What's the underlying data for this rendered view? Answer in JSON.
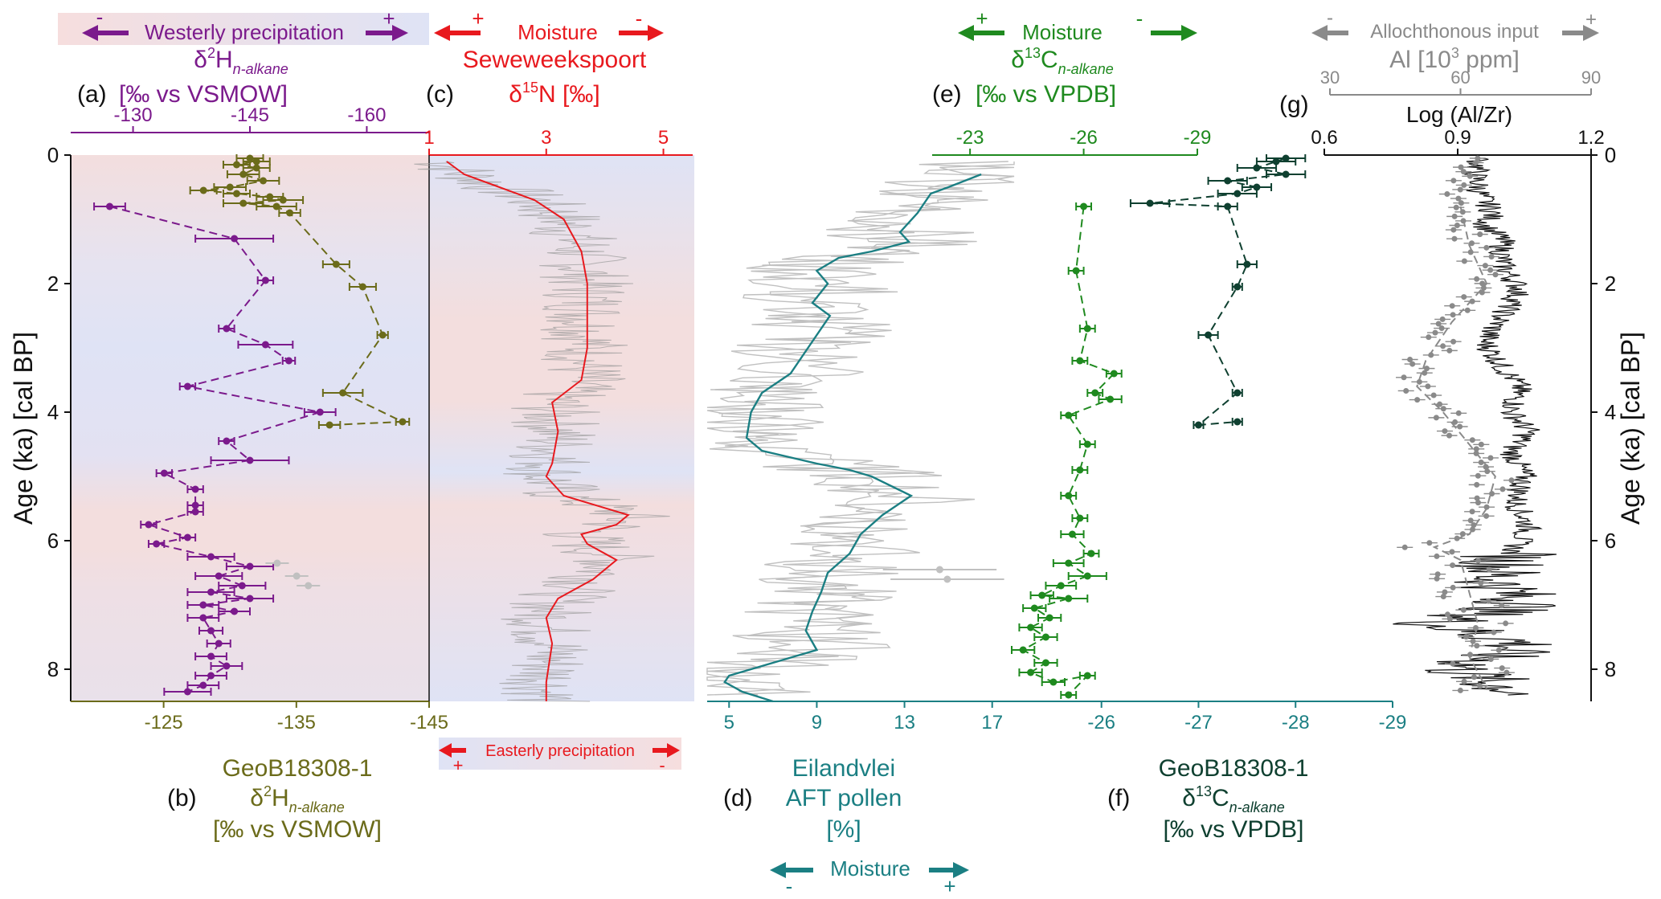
{
  "colors": {
    "purple": "#7b1a8c",
    "olive": "#6b6b1a",
    "red": "#e8191e",
    "teal": "#1b7f83",
    "green": "#1f8a1f",
    "darkgreen": "#0f4030",
    "grey": "#8a8a8a",
    "darkgrey": "#6a6a6a",
    "black": "#111111",
    "lightgrey": "#c0c0c0",
    "pink": "#f6dede",
    "blue": "#dfe3f5"
  },
  "headers": {
    "a_bar": {
      "label": "Westerly precipitation",
      "minus": "-",
      "plus": "+"
    },
    "a_title": {
      "delta": "δ",
      "sup": "2",
      "main": "H",
      "sub": "n-alkane"
    },
    "a_unit": {
      "panel": "(a)",
      "unit": "[‰ vs VSMOW]"
    },
    "c_arrow": {
      "label": "Moisture",
      "plus": "+",
      "minus": "-"
    },
    "c_title": "Seweweekspoort",
    "c_unit": {
      "panel": "(c)",
      "delta": "δ",
      "sup": "15",
      "main": "N [‰]"
    },
    "e_arrow": {
      "label": "Moisture",
      "plus": "+",
      "minus": "-"
    },
    "e_title": {
      "delta": "δ",
      "sup": "13",
      "main": "C",
      "sub": "n-alkane"
    },
    "e_unit": {
      "panel": "(e)",
      "unit": "[‰ vs VPDB]"
    },
    "g_arrow": {
      "label": "Allochthonous input",
      "minus": "-",
      "plus": "+"
    },
    "g_title": {
      "main": "Al [10",
      "sup": "3",
      "end": " ppm]"
    },
    "g_unit": {
      "panel": "(g)",
      "unit": "Log (Al/Zr)"
    },
    "easterly": {
      "label": "Easterly precipitation",
      "plus": "+",
      "minus": "-"
    },
    "b_label": {
      "panel": "(b)",
      "line1": "GeoB18308-1",
      "line2": {
        "delta": "δ",
        "sup": "2",
        "main": "H",
        "sub": "n-alkane"
      },
      "line3": "[‰ vs VSMOW]"
    },
    "d_label": {
      "panel": "(d)",
      "line1": "Eilandvlei",
      "line2": "AFT pollen",
      "line3": "[%]"
    },
    "f_label": {
      "panel": "(f)",
      "line1": "GeoB18308-1",
      "line2": {
        "delta": "δ",
        "sup": "13",
        "main": "C",
        "sub": "n-alkane"
      },
      "line3": "[‰ vs VPDB]"
    },
    "d_arrow": {
      "label": "Moisture",
      "minus": "-",
      "plus": "+"
    },
    "y_label": "Age (ka) [cal BP]"
  },
  "chart_data": [
    {
      "id": "a",
      "type": "line",
      "title": "δ2H n-alkane",
      "xlabel": "δ2H n-alkane [‰ vs VSMOW]",
      "xlim": [
        -122,
        -168
      ],
      "ticks": [
        "-130",
        "-145",
        "-160"
      ],
      "tick_values": [
        -130,
        -145,
        -160
      ],
      "points": [
        [
          -127,
          0.8
        ],
        [
          -143,
          1.3
        ],
        [
          -147,
          1.95
        ],
        [
          -142,
          2.7
        ],
        [
          -147,
          2.95
        ],
        [
          -150,
          3.2
        ],
        [
          -137,
          3.6
        ],
        [
          -154,
          4.0
        ],
        [
          -142,
          4.45
        ],
        [
          -145,
          4.75
        ],
        [
          -134,
          4.95
        ],
        [
          -138,
          5.2
        ],
        [
          -138,
          5.45
        ],
        [
          -138,
          5.55
        ],
        [
          -132,
          5.75
        ],
        [
          -137,
          5.95
        ],
        [
          -133,
          6.05
        ],
        [
          -140,
          6.25
        ],
        [
          -145,
          6.4
        ],
        [
          -141,
          6.55
        ],
        [
          -144,
          6.7
        ],
        [
          -140,
          6.8
        ],
        [
          -145,
          6.9
        ],
        [
          -139,
          7.0
        ],
        [
          -143,
          7.1
        ],
        [
          -139,
          7.2
        ],
        [
          -140,
          7.4
        ],
        [
          -141,
          7.6
        ],
        [
          -140,
          7.8
        ],
        [
          -142,
          7.95
        ],
        [
          -140,
          8.1
        ],
        [
          -139,
          8.25
        ],
        [
          -137,
          8.35
        ]
      ],
      "error": [
        2,
        5,
        1,
        1,
        3.5,
        0.8,
        1,
        2,
        1,
        5,
        1,
        1,
        1,
        1,
        1,
        1,
        1,
        3,
        3,
        3,
        3,
        3,
        3,
        2,
        2,
        2,
        1.5,
        1.5,
        2,
        2,
        2,
        2,
        3
      ],
      "light_points": [
        [
          -148.5,
          6.35
        ],
        [
          -151,
          6.55
        ],
        [
          -152.5,
          6.7
        ]
      ]
    },
    {
      "id": "b",
      "type": "line",
      "title": "δ2H n-alkane",
      "xlabel": "δ2H n-alkane [‰ vs VSMOW]",
      "xlim": [
        -118,
        -145
      ],
      "ticks": [
        "-125",
        "-135",
        "-145"
      ],
      "tick_values": [
        -125,
        -135,
        -145
      ],
      "points": [
        [
          -131.5,
          0.05
        ],
        [
          -132,
          0.1
        ],
        [
          -130.5,
          0.15
        ],
        [
          -132,
          0.2
        ],
        [
          -131,
          0.3
        ],
        [
          -132.5,
          0.4
        ],
        [
          -130,
          0.5
        ],
        [
          -128,
          0.55
        ],
        [
          -130.5,
          0.6
        ],
        [
          -133,
          0.65
        ],
        [
          -134,
          0.7
        ],
        [
          -131,
          0.75
        ],
        [
          -133.5,
          0.8
        ],
        [
          -134.5,
          0.9
        ],
        [
          -138,
          1.7
        ],
        [
          -140,
          2.05
        ],
        [
          -141.5,
          2.8
        ],
        [
          -138.5,
          3.7
        ],
        [
          -143,
          4.15
        ],
        [
          -137.5,
          4.2
        ]
      ],
      "error": [
        1,
        1,
        1,
        1,
        1.2,
        1.2,
        1.2,
        1,
        1,
        1,
        1.5,
        1.5,
        1.5,
        0.8,
        1,
        1,
        0.4,
        1.5,
        0.5,
        0.8
      ]
    },
    {
      "id": "c",
      "type": "line",
      "title": "Seweweekspoort δ15N",
      "xlabel": "δ15N [‰]",
      "xlim": [
        1,
        5.5
      ],
      "ticks": [
        "1",
        "3",
        "5"
      ],
      "tick_values": [
        1,
        3,
        5
      ],
      "series": [
        {
          "name": "δ15N smoothed",
          "points": [
            [
              1.3,
              0.1
            ],
            [
              1.6,
              0.3
            ],
            [
              2.2,
              0.5
            ],
            [
              2.8,
              0.7
            ],
            [
              3.3,
              1.0
            ],
            [
              3.6,
              1.5
            ],
            [
              3.7,
              2.0
            ],
            [
              3.7,
              2.5
            ],
            [
              3.7,
              3.0
            ],
            [
              3.6,
              3.5
            ],
            [
              3.1,
              3.85
            ],
            [
              3.2,
              4.3
            ],
            [
              3.1,
              4.8
            ],
            [
              3.0,
              5.0
            ],
            [
              3.3,
              5.3
            ],
            [
              4.4,
              5.6
            ],
            [
              4.2,
              5.75
            ],
            [
              3.6,
              5.9
            ],
            [
              3.7,
              6.05
            ],
            [
              4.2,
              6.3
            ],
            [
              3.8,
              6.6
            ],
            [
              3.2,
              6.9
            ],
            [
              3.0,
              7.2
            ],
            [
              3.1,
              7.6
            ],
            [
              3.0,
              8.2
            ],
            [
              3.0,
              8.5
            ]
          ]
        }
      ]
    },
    {
      "id": "d",
      "type": "line",
      "title": "Eilandvlei AFT pollen",
      "xlabel": "AFT pollen [%]",
      "xlim": [
        4,
        18
      ],
      "ticks": [
        "5",
        "9",
        "13",
        "17"
      ],
      "tick_values": [
        5,
        9,
        13,
        17
      ],
      "series": [
        {
          "name": "AFT pollen smoothed",
          "points": [
            [
              16.5,
              0.3
            ],
            [
              15,
              0.5
            ],
            [
              14.2,
              0.6
            ],
            [
              13.6,
              0.9
            ],
            [
              12.8,
              1.2
            ],
            [
              13.2,
              1.35
            ],
            [
              11.5,
              1.5
            ],
            [
              10,
              1.6
            ],
            [
              9,
              1.8
            ],
            [
              9.5,
              2.0
            ],
            [
              8.8,
              2.3
            ],
            [
              9.6,
              2.5
            ],
            [
              9,
              2.8
            ],
            [
              8.6,
              3.0
            ],
            [
              7.8,
              3.4
            ],
            [
              6.5,
              3.7
            ],
            [
              6.0,
              4.0
            ],
            [
              5.8,
              4.4
            ],
            [
              6.5,
              4.6
            ],
            [
              9,
              4.8
            ],
            [
              10.5,
              4.9
            ],
            [
              11.5,
              5.0
            ],
            [
              13.3,
              5.3
            ],
            [
              12,
              5.6
            ],
            [
              11,
              5.9
            ],
            [
              10.5,
              6.2
            ],
            [
              9.5,
              6.5
            ],
            [
              9.2,
              6.8
            ],
            [
              8.8,
              7.1
            ],
            [
              8.5,
              7.4
            ],
            [
              9.0,
              7.7
            ],
            [
              8.0,
              7.8
            ],
            [
              6.0,
              8.0
            ],
            [
              5.0,
              8.1
            ],
            [
              4.8,
              8.2
            ],
            [
              5.6,
              8.35
            ],
            [
              7.0,
              8.5
            ]
          ]
        }
      ]
    },
    {
      "id": "e",
      "type": "line",
      "title": "δ13C n-alkane",
      "xlabel": "δ13C n-alkane [‰ vs VPDB]",
      "xlim": [
        -22,
        -29
      ],
      "ticks": [
        "-23",
        "-26",
        "-29"
      ],
      "tick_values": [
        -23,
        -26,
        -29
      ],
      "points": [
        [
          -26,
          0.8
        ],
        [
          -25.8,
          1.8
        ],
        [
          -26.1,
          2.7
        ],
        [
          -25.9,
          3.2
        ],
        [
          -26.8,
          3.4
        ],
        [
          -26.3,
          3.7
        ],
        [
          -26.7,
          3.8
        ],
        [
          -25.6,
          4.05
        ],
        [
          -26.1,
          4.5
        ],
        [
          -25.9,
          4.9
        ],
        [
          -25.6,
          5.3
        ],
        [
          -25.9,
          5.65
        ],
        [
          -25.7,
          5.9
        ],
        [
          -26.2,
          6.2
        ],
        [
          -25.6,
          6.35
        ],
        [
          -26.1,
          6.55
        ],
        [
          -25.4,
          6.7
        ],
        [
          -24.9,
          6.85
        ],
        [
          -25.6,
          6.9
        ],
        [
          -24.7,
          7.05
        ],
        [
          -25.1,
          7.2
        ],
        [
          -24.6,
          7.35
        ],
        [
          -25.0,
          7.5
        ],
        [
          -24.4,
          7.7
        ],
        [
          -25.0,
          7.9
        ],
        [
          -24.6,
          8.05
        ],
        [
          -25.2,
          8.2
        ],
        [
          -26.1,
          8.1
        ],
        [
          -25.6,
          8.4
        ]
      ],
      "error": [
        0.2,
        0.2,
        0.2,
        0.2,
        0.2,
        0.2,
        0.3,
        0.2,
        0.2,
        0.2,
        0.2,
        0.2,
        0.3,
        0.2,
        0.4,
        0.5,
        0.4,
        0.3,
        0.5,
        0.3,
        0.3,
        0.3,
        0.3,
        0.3,
        0.3,
        0.3,
        0.3,
        0.2,
        0.2
      ],
      "light_points": [
        [
          -22.2,
          6.45
        ],
        [
          -22.4,
          6.6
        ]
      ]
    },
    {
      "id": "f",
      "type": "line",
      "title": "δ13C n-alkane",
      "xlabel": "δ13C n-alkane [‰ vs VPDB]",
      "xlim": [
        -25.1,
        -29
      ],
      "ticks": [
        "-26",
        "-27",
        "-28",
        "-29"
      ],
      "tick_values": [
        -26,
        -27,
        -28,
        -29
      ],
      "points": [
        [
          -27.9,
          0.05
        ],
        [
          -27.8,
          0.1
        ],
        [
          -27.6,
          0.2
        ],
        [
          -27.9,
          0.3
        ],
        [
          -27.3,
          0.4
        ],
        [
          -27.6,
          0.5
        ],
        [
          -27.4,
          0.6
        ],
        [
          -26.5,
          0.75
        ],
        [
          -27.3,
          0.8
        ],
        [
          -27.5,
          1.7
        ],
        [
          -27.4,
          2.05
        ],
        [
          -27.1,
          2.8
        ],
        [
          -27.4,
          3.7
        ],
        [
          -27.0,
          4.2
        ],
        [
          -27.4,
          4.15
        ]
      ],
      "error": [
        0.2,
        0.2,
        0.2,
        0.2,
        0.2,
        0.15,
        0.2,
        0.2,
        0.1,
        0.1,
        0.05,
        0.1,
        0.05,
        0.05,
        0.05
      ]
    },
    {
      "id": "g",
      "type": "line",
      "title": "Log (Al/Zr) and Al",
      "xlabel": "Log (Al/Zr)",
      "xlim": [
        0.6,
        1.2
      ],
      "ticks": [
        "0.6",
        "0.9",
        "1.2"
      ],
      "tick_values": [
        0.6,
        0.9,
        1.2
      ],
      "secondary_axis": {
        "label": "Al [10^3 ppm]",
        "xlim": [
          30,
          90
        ],
        "ticks": [
          "30",
          "60",
          "90"
        ],
        "tick_values": [
          30,
          60,
          90
        ]
      },
      "series": [
        {
          "name": "Log (Al/Zr)",
          "points": [
            [
              0.95,
              0.05
            ],
            [
              0.94,
              0.3
            ],
            [
              0.95,
              0.6
            ],
            [
              0.98,
              0.9
            ],
            [
              0.96,
              1.1
            ],
            [
              1.0,
              1.3
            ],
            [
              1.0,
              1.7
            ],
            [
              1.04,
              2.1
            ],
            [
              1.0,
              2.5
            ],
            [
              0.96,
              2.9
            ],
            [
              1.0,
              3.3
            ],
            [
              1.04,
              3.6
            ],
            [
              1.02,
              4.0
            ],
            [
              1.06,
              4.3
            ],
            [
              1.02,
              4.6
            ],
            [
              1.05,
              5.0
            ],
            [
              1.03,
              5.4
            ],
            [
              1.06,
              5.8
            ],
            [
              1.02,
              6.2
            ],
            [
              0.98,
              6.6
            ],
            [
              1.05,
              7.0
            ],
            [
              0.85,
              7.3
            ],
            [
              1.05,
              7.6
            ],
            [
              0.9,
              8.0
            ],
            [
              1.05,
              8.4
            ]
          ]
        },
        {
          "name": "Al",
          "points": [
            [
              60,
              0.8
            ],
            [
              62,
              1.4
            ],
            [
              66,
              2.0
            ],
            [
              58,
              2.6
            ],
            [
              52,
              3.2
            ],
            [
              50,
              3.6
            ],
            [
              56,
              4.0
            ],
            [
              62,
              4.5
            ],
            [
              68,
              5.0
            ],
            [
              66,
              5.5
            ],
            [
              62,
              5.9
            ],
            [
              54,
              6.1
            ],
            [
              60,
              6.3
            ],
            [
              62,
              6.8
            ],
            [
              64,
              7.3
            ],
            [
              62,
              7.8
            ],
            [
              66,
              8.3
            ]
          ]
        }
      ]
    }
  ],
  "y_axis": {
    "ylim": [
      0,
      8.5
    ],
    "ticks": [
      "0",
      "2",
      "4",
      "6",
      "8"
    ],
    "tick_values": [
      0,
      2,
      4,
      6,
      8
    ]
  }
}
